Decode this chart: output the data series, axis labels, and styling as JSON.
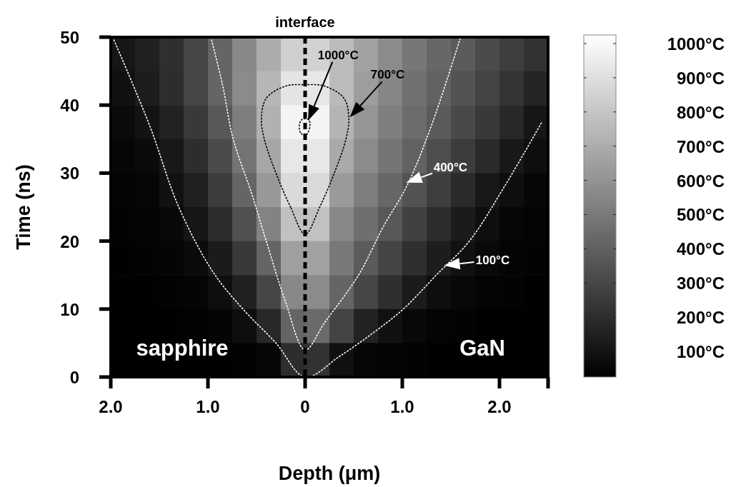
{
  "chart_data": {
    "type": "heatmap",
    "xlabel": "Depth (μm)",
    "ylabel": "Time (ns)",
    "x": [
      -1.875,
      -1.625,
      -1.375,
      -1.125,
      -0.875,
      -0.625,
      -0.375,
      -0.125,
      0.125,
      0.375,
      0.625,
      0.875,
      1.125,
      1.375,
      1.625,
      1.875,
      2.125,
      2.375
    ],
    "xlim": [
      -2,
      2.5
    ],
    "xticks": [
      {
        "value": -2,
        "label": "2.0"
      },
      {
        "value": -1,
        "label": "1.0"
      },
      0,
      {
        "value": 1,
        "label": "1.0"
      },
      {
        "value": 2,
        "label": "2.0"
      },
      {
        "value": 2.5,
        "label": null
      }
    ],
    "ylim": [
      0,
      50
    ],
    "yticks": [
      0,
      10,
      20,
      30,
      40,
      50
    ],
    "clim": [
      25,
      1025
    ],
    "cticks": [
      {
        "value": 100,
        "label": "100°C"
      },
      {
        "value": 200,
        "label": "200°C"
      },
      {
        "value": 300,
        "label": "300°C"
      },
      {
        "value": 400,
        "label": "400°C"
      },
      {
        "value": 500,
        "label": "500°C"
      },
      {
        "value": 600,
        "label": "600°C"
      },
      {
        "value": 700,
        "label": "700°C"
      },
      {
        "value": 800,
        "label": "800°C"
      },
      {
        "value": 900,
        "label": "900°C"
      },
      {
        "value": 1000,
        "label": "1000°C"
      }
    ],
    "cells": [
      [
        110,
        150,
        210,
        300,
        420,
        560,
        700,
        840,
        850,
        760,
        660,
        570,
        490,
        430,
        380,
        320,
        270,
        220
      ],
      [
        90,
        140,
        200,
        300,
        420,
        570,
        740,
        920,
        930,
        760,
        640,
        550,
        470,
        410,
        350,
        290,
        230,
        170
      ],
      [
        70,
        100,
        160,
        250,
        370,
        520,
        720,
        980,
        980,
        730,
        610,
        520,
        450,
        380,
        310,
        250,
        180,
        110
      ],
      [
        50,
        70,
        120,
        200,
        320,
        480,
        680,
        930,
        930,
        690,
        570,
        480,
        410,
        330,
        260,
        190,
        120,
        80
      ],
      [
        40,
        50,
        90,
        150,
        260,
        420,
        620,
        880,
        880,
        630,
        520,
        430,
        350,
        270,
        190,
        120,
        80,
        50
      ],
      [
        35,
        40,
        60,
        110,
        200,
        340,
        540,
        780,
        780,
        560,
        460,
        370,
        280,
        200,
        130,
        80,
        50,
        40
      ],
      [
        30,
        35,
        45,
        70,
        130,
        250,
        420,
        650,
        660,
        500,
        380,
        290,
        210,
        140,
        90,
        60,
        40,
        35
      ],
      [
        30,
        30,
        35,
        45,
        80,
        150,
        300,
        560,
        570,
        420,
        300,
        210,
        130,
        80,
        55,
        40,
        35,
        30
      ],
      [
        30,
        30,
        30,
        35,
        45,
        80,
        180,
        420,
        440,
        290,
        160,
        90,
        55,
        40,
        35,
        30,
        30,
        30
      ],
      [
        30,
        30,
        30,
        30,
        30,
        35,
        50,
        200,
        220,
        90,
        50,
        40,
        35,
        30,
        30,
        30,
        30,
        30
      ]
    ],
    "series": [
      {
        "type": "line",
        "color": "#ffffff",
        "line_style": "dotted",
        "x": [
          -1.98,
          -1.6,
          -1.3,
          -0.95,
          -0.64,
          -0.3,
          0,
          0.35,
          0.7,
          1.01,
          1.35,
          1.69,
          2.05,
          2.44
        ],
        "values": [
          50,
          37,
          25,
          15.5,
          10,
          5,
          0,
          3,
          6.5,
          10,
          15,
          20,
          28,
          37.6
        ]
      },
      {
        "type": "line",
        "color": "#ffffff",
        "line_style": "dotted",
        "x": [
          -0.97,
          -0.85,
          -0.74,
          -0.55,
          -0.4,
          -0.2,
          0,
          0.2,
          0.55,
          0.8,
          1.05,
          1.3,
          1.6
        ],
        "values": [
          50,
          43,
          35,
          27,
          20,
          11,
          4,
          8,
          15,
          22,
          28.2,
          37,
          50
        ]
      }
    ],
    "ref_lines": [
      {
        "axis": "x",
        "value": 0,
        "label": "interface",
        "color": "#000000",
        "line_style": "dashed"
      }
    ],
    "annotations": [
      "1000°C",
      "700°C",
      {
        "text": "400°C",
        "x": 1.04,
        "y": 28.6
      },
      {
        "text": "100°C",
        "x": 1.43,
        "y": 16.4
      },
      "sapphire",
      "GaN"
    ]
  }
}
